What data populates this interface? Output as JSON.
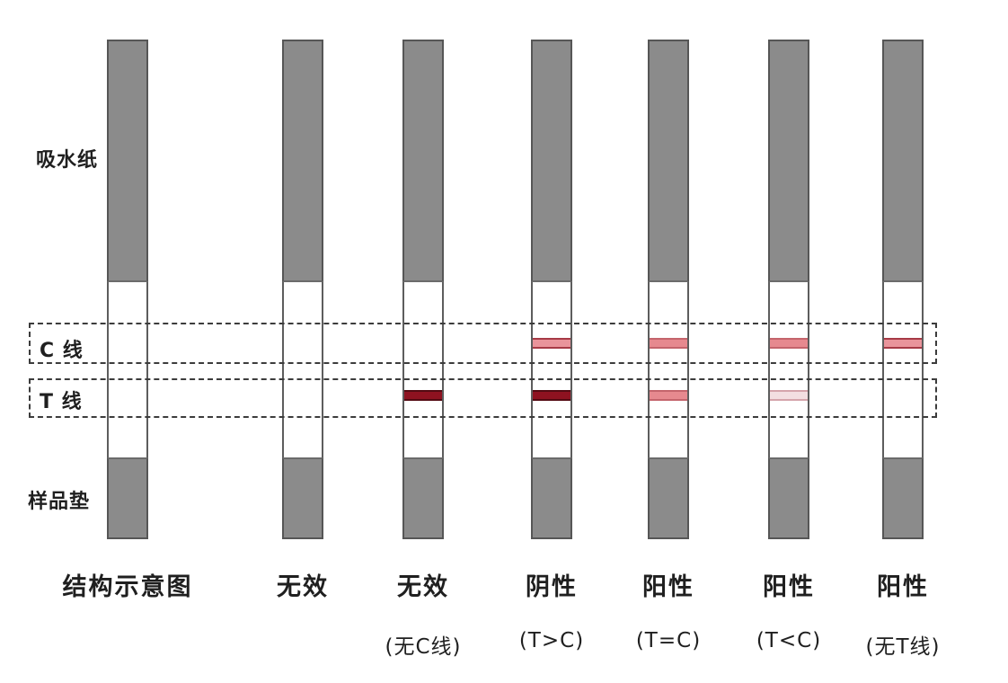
{
  "labels": {
    "absorbent": "吸水纸",
    "c_line": "C 线",
    "t_line": "T 线",
    "sample_pad": "样品垫"
  },
  "strips": [
    {
      "caption": "结构示意图",
      "sub_caption": "",
      "c_line": "none",
      "t_line": "none"
    },
    {
      "caption": "无效",
      "sub_caption": "",
      "c_line": "none",
      "t_line": "none"
    },
    {
      "caption": "无效",
      "sub_caption": "(无C线)",
      "c_line": "none",
      "t_line": "dark"
    },
    {
      "caption": "阴性",
      "sub_caption": "(T>C)",
      "c_line": "pink_strong",
      "t_line": "dark"
    },
    {
      "caption": "阳性",
      "sub_caption": "(T=C)",
      "c_line": "pink",
      "t_line": "pink"
    },
    {
      "caption": "阳性",
      "sub_caption": "(T<C)",
      "c_line": "pink",
      "t_line": "faint"
    },
    {
      "caption": "阳性",
      "sub_caption": "(无T线)",
      "c_line": "pink_strong",
      "t_line": "none"
    }
  ],
  "colors": {
    "strip_gray": "#8b8b8b",
    "strip_border": "#565656",
    "dark_line_fill": "#8e1220",
    "dark_line_border": "#530a12",
    "pink_line_fill": "#e6898f",
    "pink_line_border": "#c4646c",
    "pink_strong_fill": "#e9949b",
    "pink_strong_border": "#a73a46",
    "faint_line_fill": "#f3dee1",
    "faint_line_border": "#d5a4ab",
    "zone_dash": "#3c3c3c",
    "text": "#1f1f1f"
  }
}
